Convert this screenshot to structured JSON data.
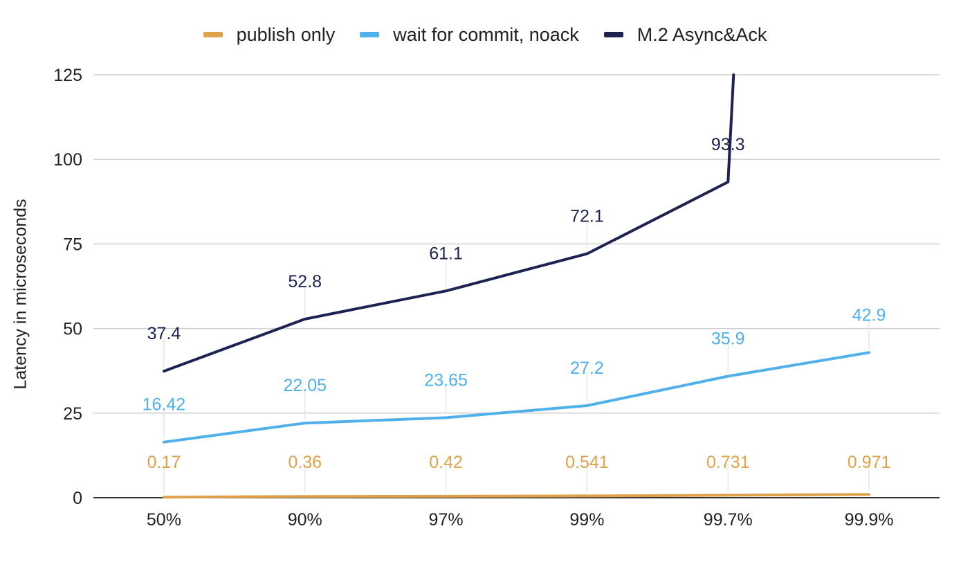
{
  "chart_data": {
    "type": "line",
    "title": "",
    "xlabel": "",
    "ylabel": "Latency in microseconds",
    "categories": [
      "50%",
      "90%",
      "97%",
      "99%",
      "99.7%",
      "99.9%"
    ],
    "ylim": [
      0,
      125
    ],
    "yticks": [
      0,
      25,
      50,
      75,
      100,
      125
    ],
    "grid": true,
    "legend_position": "top",
    "series": [
      {
        "name": "publish only",
        "color": "#e0a14b",
        "values": [
          0.17,
          0.36,
          0.42,
          0.541,
          0.731,
          0.971
        ],
        "labels": [
          "0.17",
          "0.36",
          "0.42",
          "0.541",
          "0.731",
          "0.971"
        ]
      },
      {
        "name": "wait for commit, noack",
        "color": "#4fb0ea",
        "values": [
          16.42,
          22.05,
          23.65,
          27.2,
          35.9,
          42.9
        ],
        "labels": [
          "16.42",
          "22.05",
          "23.65",
          "27.2",
          "35.9",
          "42.9"
        ]
      },
      {
        "name": "M.2 Async&Ack",
        "color": "#1c2352",
        "values": [
          37.4,
          52.8,
          61.1,
          72.1,
          93.3,
          null
        ],
        "labels": [
          "37.4",
          "52.8",
          "61.1",
          "72.1",
          "93.3",
          ""
        ],
        "offscale_last": true
      }
    ]
  }
}
